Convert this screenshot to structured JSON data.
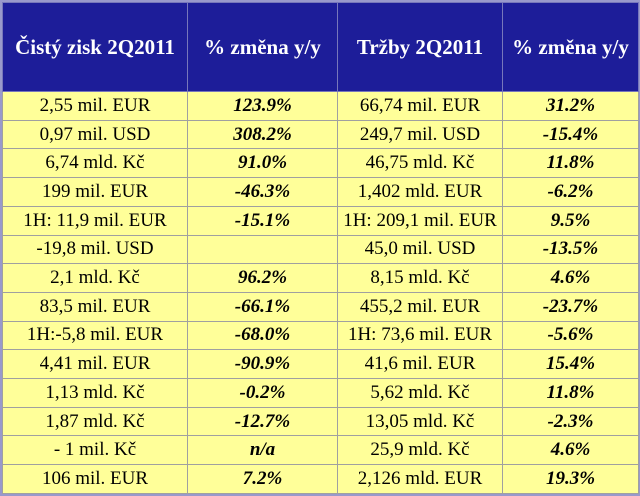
{
  "headers": [
    "Čistý zisk 2Q2011",
    "% změna y/y",
    "Tržby 2Q2011",
    "% změna y/y"
  ],
  "rows": [
    [
      "2,55 mil. EUR",
      "123.9%",
      "66,74 mil. EUR",
      "31.2%"
    ],
    [
      "0,97 mil. USD",
      "308.2%",
      "249,7 mil. USD",
      "-15.4%"
    ],
    [
      "6,74 mld. Kč",
      "91.0%",
      "46,75 mld. Kč",
      "11.8%"
    ],
    [
      "199 mil. EUR",
      "-46.3%",
      "1,402 mld. EUR",
      "-6.2%"
    ],
    [
      "1H: 11,9 mil. EUR",
      "-15.1%",
      "1H: 209,1 mil. EUR",
      "9.5%"
    ],
    [
      "-19,8 mil. USD",
      "",
      "45,0 mil. USD",
      "-13.5%"
    ],
    [
      "2,1 mld. Kč",
      "96.2%",
      "8,15 mld. Kč",
      "4.6%"
    ],
    [
      "83,5 mil. EUR",
      "-66.1%",
      "455,2 mil. EUR",
      "-23.7%"
    ],
    [
      "1H:-5,8 mil. EUR",
      "-68.0%",
      "1H: 73,6 mil. EUR",
      "-5.6%"
    ],
    [
      "4,41 mil. EUR",
      "-90.9%",
      "41,6 mil. EUR",
      "15.4%"
    ],
    [
      "1,13 mld. Kč",
      "-0.2%",
      "5,62 mld. Kč",
      "11.8%"
    ],
    [
      "1,87 mld. Kč",
      "-12.7%",
      "13,05 mld. Kč",
      "-2.3%"
    ],
    [
      "- 1 mil. Kč",
      "n/a",
      "25,9 mld. Kč",
      "4.6%"
    ],
    [
      "106 mil. EUR",
      "7.2%",
      "2,126 mld. EUR",
      "19.3%"
    ]
  ],
  "colors": {
    "header_bg": "#1d1d99",
    "header_text": "#ffffff",
    "cell_bg": "#ffff99",
    "border": "#a0a0a0"
  }
}
